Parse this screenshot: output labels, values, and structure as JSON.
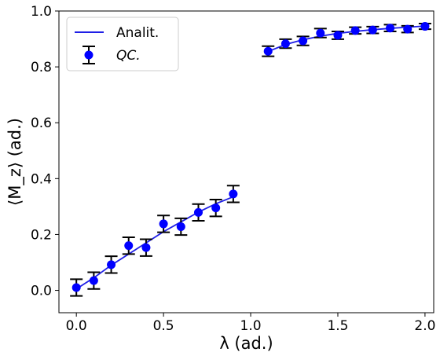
{
  "chart_data": {
    "type": "line",
    "xlabel": "λ (ad.)",
    "ylabel": "⟨M_z⟩ (ad.)",
    "xlim": [
      -0.1,
      2.05
    ],
    "ylim": [
      -0.08,
      1.0
    ],
    "x_ticks": [
      0.0,
      0.5,
      1.0,
      1.5,
      2.0
    ],
    "x_tick_labels": [
      "0.0",
      "0.5",
      "1.0",
      "1.5",
      "2.0"
    ],
    "y_ticks": [
      0.0,
      0.2,
      0.4,
      0.6,
      0.8,
      1.0
    ],
    "y_tick_labels": [
      "0.0",
      "0.2",
      "0.4",
      "0.6",
      "0.8",
      "1.0"
    ],
    "legend_position": "top-left",
    "grid": false,
    "series": [
      {
        "name": "Analit.",
        "kind": "line",
        "color": "#1f1fe6",
        "segments": [
          {
            "x": [
              0.0,
              0.1,
              0.2,
              0.3,
              0.4,
              0.5,
              0.6,
              0.7,
              0.8,
              0.9
            ],
            "y": [
              0.005,
              0.045,
              0.09,
              0.13,
              0.17,
              0.21,
              0.245,
              0.28,
              0.31,
              0.335
            ]
          },
          {
            "x": [
              1.1,
              1.2,
              1.3,
              1.4,
              1.5,
              1.6,
              1.7,
              1.8,
              1.9,
              2.0
            ],
            "y": [
              0.855,
              0.88,
              0.897,
              0.91,
              0.92,
              0.927,
              0.933,
              0.938,
              0.942,
              0.946
            ]
          }
        ]
      },
      {
        "name": "QC.",
        "kind": "errorbar",
        "color": "#0000ff",
        "x": [
          0.0,
          0.1,
          0.2,
          0.3,
          0.4,
          0.5,
          0.6,
          0.7,
          0.8,
          0.9,
          1.1,
          1.2,
          1.3,
          1.4,
          1.5,
          1.6,
          1.7,
          1.8,
          1.9,
          2.0
        ],
        "y": [
          0.01,
          0.035,
          0.092,
          0.16,
          0.153,
          0.238,
          0.228,
          0.279,
          0.295,
          0.345,
          0.856,
          0.883,
          0.893,
          0.921,
          0.913,
          0.93,
          0.932,
          0.939,
          0.935,
          0.945
        ],
        "yerr": [
          0.03,
          0.03,
          0.03,
          0.03,
          0.03,
          0.03,
          0.03,
          0.03,
          0.03,
          0.03,
          0.018,
          0.016,
          0.016,
          0.016,
          0.014,
          0.012,
          0.012,
          0.012,
          0.012,
          0.01
        ]
      }
    ]
  }
}
